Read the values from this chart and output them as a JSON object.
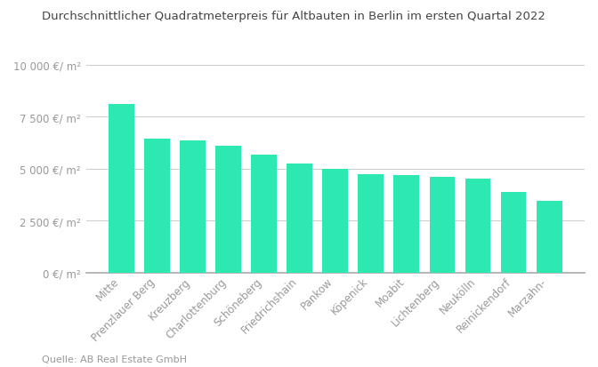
{
  "title": "Durchschnittlicher Quadratmeterpreis für Altbauten in Berlin im ersten Quartal 2022",
  "categories": [
    "Mitte",
    "Prenzlauer Berg",
    "Kreuzberg",
    "Charlottenburg",
    "Schöneberg",
    "Friedrichshain",
    "Pankow",
    "Köpenick",
    "Moabit",
    "Lichtenberg",
    "Neukölln",
    "Reinickendorf",
    "Marzahn-"
  ],
  "values": [
    8100,
    6450,
    6350,
    6100,
    5700,
    5250,
    4980,
    4720,
    4700,
    4620,
    4520,
    3900,
    3450
  ],
  "bar_color": "#2de8b0",
  "ylim": [
    0,
    10000
  ],
  "yticks": [
    0,
    2500,
    5000,
    7500,
    10000
  ],
  "ytick_labels": [
    "0 €/ m²",
    "2 500 €/ m²",
    "5 000 €/ m²",
    "7 500 €/ m²",
    "10 000 €/ m²"
  ],
  "source": "Quelle: AB Real Estate GmbH",
  "background_color": "#ffffff",
  "grid_color": "#cccccc",
  "title_fontsize": 9.5,
  "label_fontsize": 8.5,
  "source_fontsize": 8,
  "bar_width": 0.72
}
